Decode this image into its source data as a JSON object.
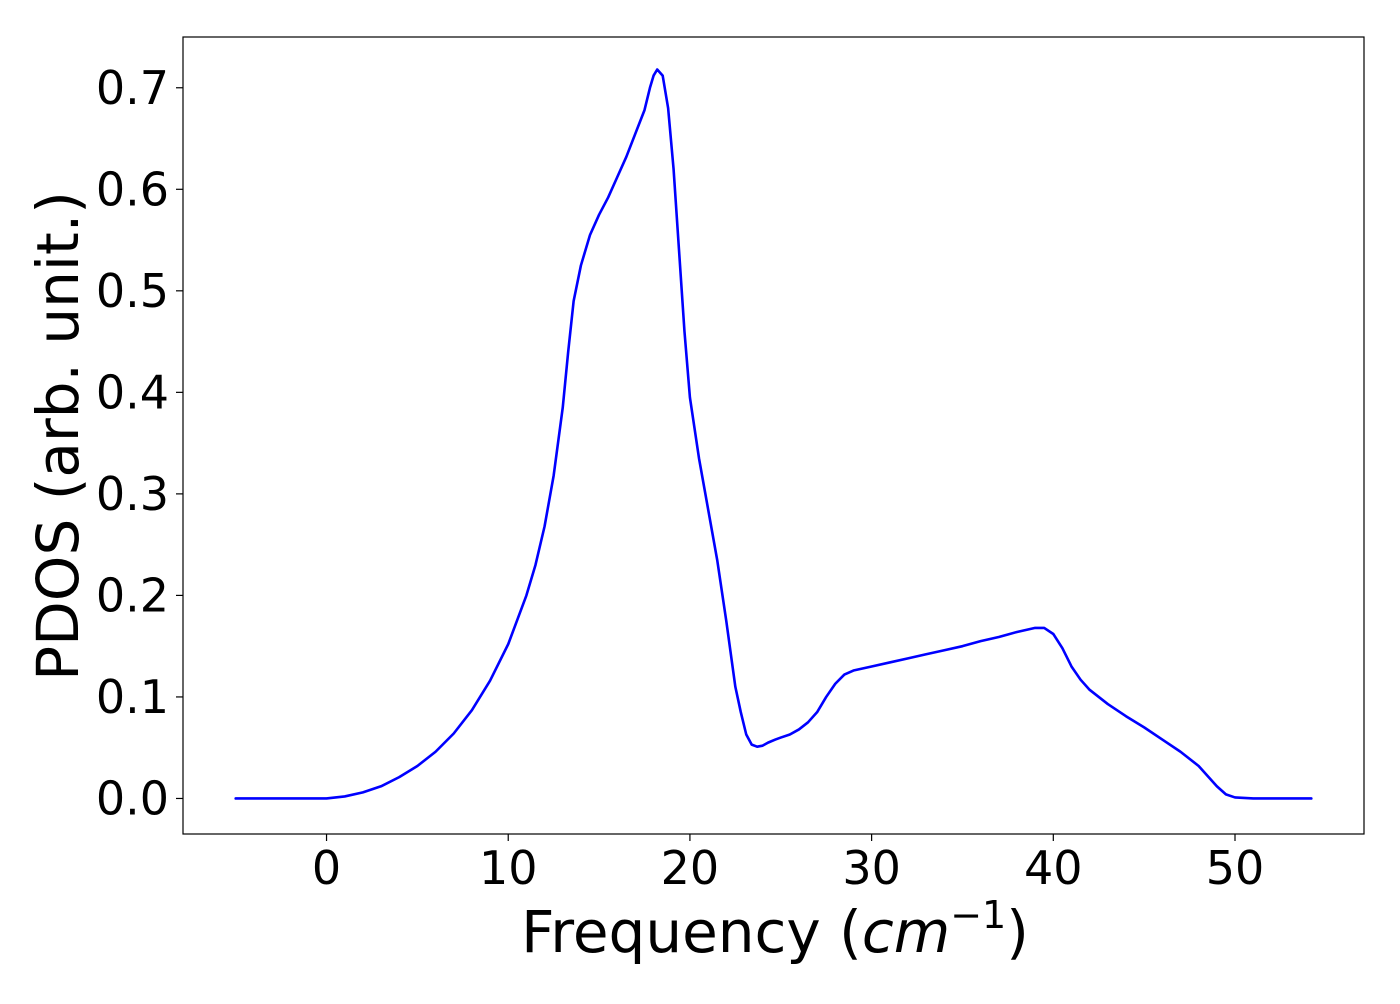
{
  "chart_data": {
    "type": "line",
    "title": "",
    "xlabel_main": "Frequency (",
    "xlabel_math": "cm",
    "xlabel_sup": "−1",
    "xlabel_close": ")",
    "ylabel": "PDOS (arb. unit.)",
    "xlim": [
      -7.9,
      57.1
    ],
    "ylim": [
      -0.035,
      0.75
    ],
    "grid": false,
    "legend": "none",
    "x_ticks": [
      0,
      10,
      20,
      30,
      40,
      50
    ],
    "x_tick_labels": [
      "0",
      "10",
      "20",
      "30",
      "40",
      "50"
    ],
    "y_ticks": [
      0.0,
      0.1,
      0.2,
      0.3,
      0.4,
      0.5,
      0.6,
      0.7
    ],
    "y_tick_labels": [
      "0.0",
      "0.1",
      "0.2",
      "0.3",
      "0.4",
      "0.5",
      "0.6",
      "0.7"
    ],
    "series": [
      {
        "color": "#0000ff",
        "x": [
          -5.0,
          -2.0,
          0.0,
          1.0,
          2.0,
          3.0,
          4.0,
          5.0,
          6.0,
          7.0,
          8.0,
          9.0,
          10.0,
          11.0,
          11.5,
          12.0,
          12.5,
          13.0,
          13.3,
          13.6,
          14.0,
          14.5,
          15.0,
          15.5,
          16.0,
          16.5,
          17.0,
          17.5,
          17.8,
          18.0,
          18.2,
          18.5,
          18.8,
          19.1,
          19.4,
          19.7,
          20.0,
          20.5,
          21.0,
          21.5,
          22.0,
          22.5,
          22.8,
          23.1,
          23.4,
          23.7,
          24.0,
          24.3,
          24.7,
          25.0,
          25.5,
          26.0,
          26.5,
          27.0,
          27.5,
          28.0,
          28.5,
          29.0,
          29.5,
          30.0,
          31.0,
          32.0,
          33.0,
          34.0,
          35.0,
          36.0,
          37.0,
          38.0,
          39.0,
          39.5,
          40.0,
          40.5,
          41.0,
          41.5,
          42.0,
          43.0,
          44.0,
          45.0,
          46.0,
          47.0,
          48.0,
          48.5,
          49.0,
          49.5,
          50.0,
          51.0,
          52.0,
          54.2
        ],
        "y": [
          0.0,
          0.0,
          0.0,
          0.002,
          0.006,
          0.012,
          0.021,
          0.032,
          0.046,
          0.064,
          0.087,
          0.116,
          0.152,
          0.2,
          0.23,
          0.268,
          0.318,
          0.385,
          0.44,
          0.49,
          0.525,
          0.555,
          0.575,
          0.592,
          0.612,
          0.632,
          0.655,
          0.678,
          0.7,
          0.712,
          0.718,
          0.712,
          0.68,
          0.62,
          0.54,
          0.46,
          0.395,
          0.335,
          0.285,
          0.235,
          0.175,
          0.11,
          0.085,
          0.063,
          0.053,
          0.051,
          0.052,
          0.055,
          0.058,
          0.06,
          0.063,
          0.068,
          0.075,
          0.085,
          0.1,
          0.113,
          0.122,
          0.126,
          0.128,
          0.13,
          0.134,
          0.138,
          0.142,
          0.146,
          0.15,
          0.155,
          0.159,
          0.164,
          0.168,
          0.168,
          0.162,
          0.148,
          0.13,
          0.117,
          0.107,
          0.093,
          0.081,
          0.07,
          0.058,
          0.046,
          0.032,
          0.022,
          0.012,
          0.004,
          0.001,
          0.0,
          0.0,
          0.0
        ]
      }
    ]
  }
}
